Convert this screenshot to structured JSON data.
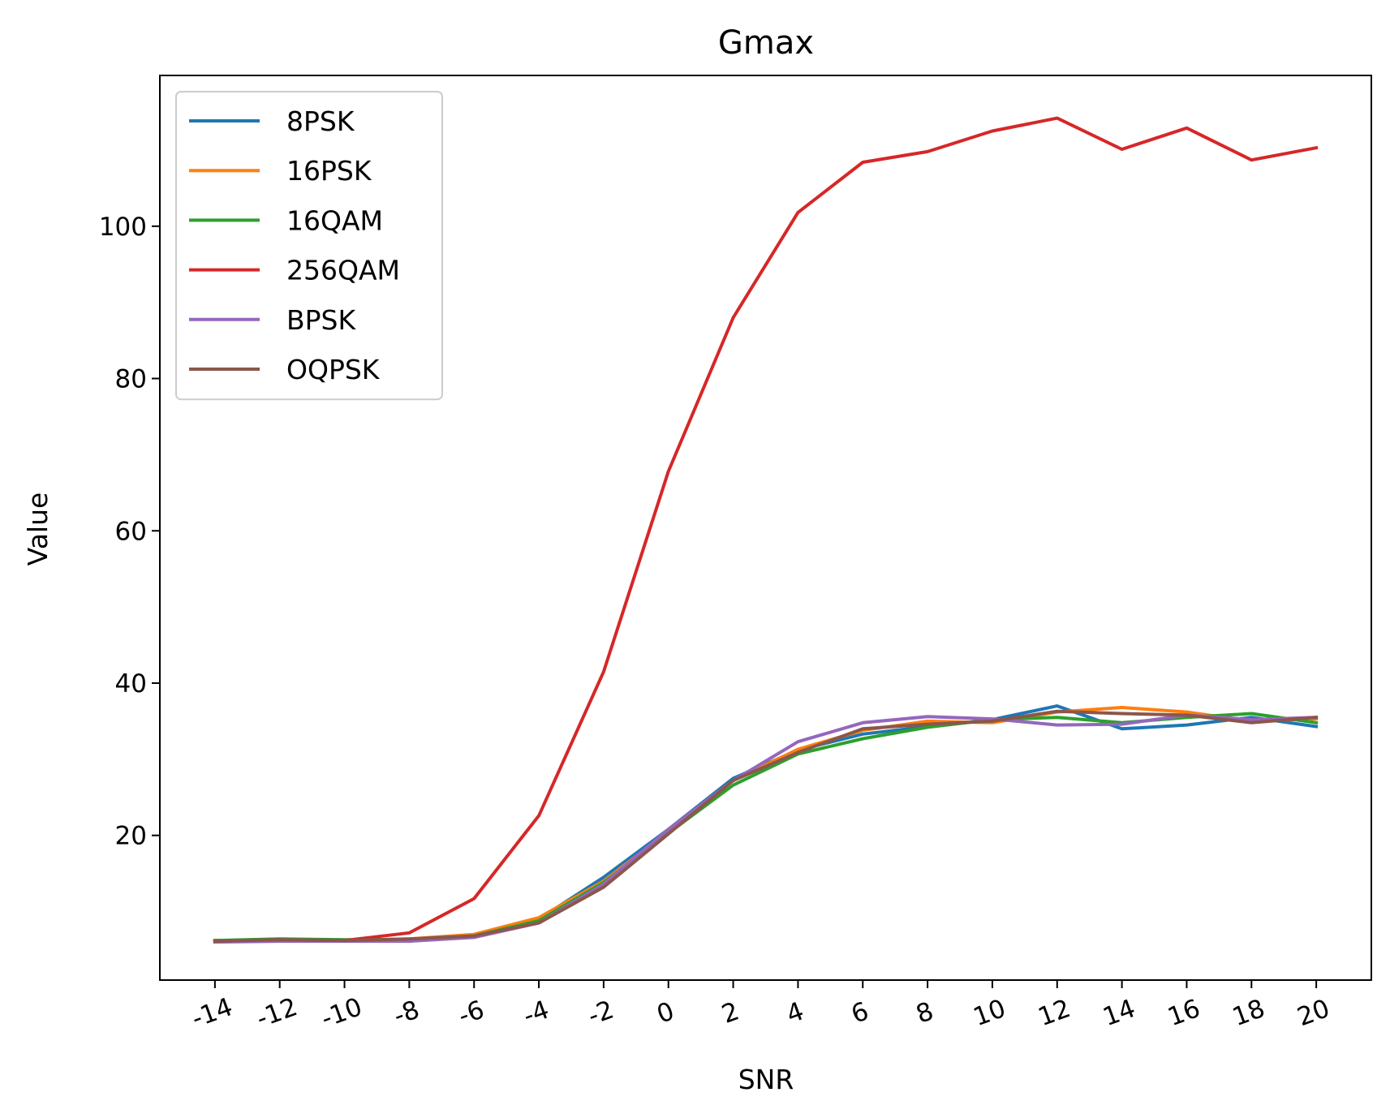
{
  "chart_data": {
    "type": "line",
    "title": "Gmax",
    "xlabel": "SNR",
    "ylabel": "Value",
    "x": [
      -14,
      -12,
      -10,
      -8,
      -6,
      -4,
      -2,
      0,
      2,
      4,
      6,
      8,
      10,
      12,
      14,
      16,
      18,
      20
    ],
    "x_tick_labels": [
      "-14",
      "-12",
      "-10",
      "-8",
      "-6",
      "-4",
      "-2",
      "0",
      "2",
      "4",
      "6",
      "8",
      "10",
      "12",
      "14",
      "16",
      "18",
      "20"
    ],
    "y_ticks": [
      20,
      40,
      60,
      80,
      100
    ],
    "y_tick_labels": [
      "20",
      "40",
      "60",
      "80",
      "100"
    ],
    "xlim": [
      -15.7,
      21.7
    ],
    "ylim": [
      1.0,
      119.8
    ],
    "grid": false,
    "legend_position": "top-left",
    "series": [
      {
        "name": "8PSK",
        "color": "#1f77b4",
        "values": [
          6.2,
          6.3,
          6.2,
          6.3,
          6.8,
          9.0,
          14.5,
          20.8,
          27.5,
          31.2,
          33.3,
          34.3,
          35.2,
          37.0,
          34.0,
          34.5,
          35.5,
          34.3
        ]
      },
      {
        "name": "16PSK",
        "color": "#ff7f0e",
        "values": [
          6.2,
          6.3,
          6.2,
          6.4,
          7.0,
          9.2,
          14.0,
          20.5,
          27.2,
          31.3,
          33.8,
          35.0,
          34.8,
          36.2,
          36.8,
          36.2,
          35.0,
          35.3
        ]
      },
      {
        "name": "16QAM",
        "color": "#2ca02c",
        "values": [
          6.2,
          6.4,
          6.3,
          6.3,
          6.8,
          8.8,
          13.8,
          20.3,
          26.6,
          30.7,
          32.7,
          34.2,
          35.2,
          35.5,
          34.8,
          35.5,
          36.0,
          34.8
        ]
      },
      {
        "name": "256QAM",
        "color": "#d62728",
        "values": [
          6.1,
          6.2,
          6.2,
          7.2,
          11.7,
          22.6,
          41.5,
          67.8,
          88.0,
          101.8,
          108.4,
          109.8,
          112.5,
          114.2,
          110.1,
          112.9,
          108.7,
          110.3
        ]
      },
      {
        "name": "BPSK",
        "color": "#9467bd",
        "values": [
          6.0,
          6.1,
          6.1,
          6.1,
          6.6,
          8.5,
          13.6,
          20.8,
          27.2,
          32.3,
          34.8,
          35.6,
          35.3,
          34.5,
          34.6,
          35.8,
          35.2,
          35.5
        ]
      },
      {
        "name": "OQPSK",
        "color": "#8c564b",
        "values": [
          6.1,
          6.3,
          6.2,
          6.4,
          6.8,
          8.5,
          13.2,
          20.2,
          27.2,
          30.9,
          34.0,
          34.6,
          35.0,
          36.3,
          36.0,
          35.8,
          34.8,
          35.5
        ]
      }
    ]
  }
}
